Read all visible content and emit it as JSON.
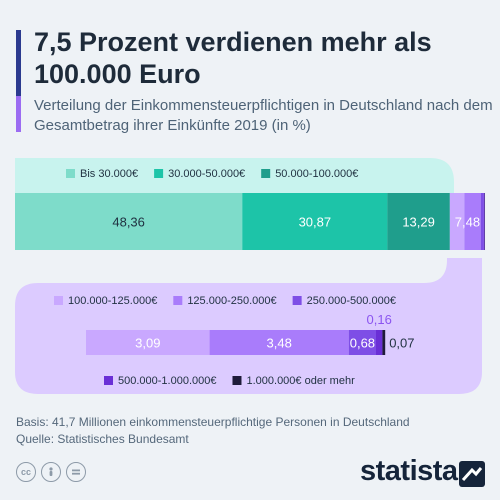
{
  "title": "7,5 Prozent verdienen mehr als 100.000 Euro",
  "subtitle": "Verteilung der Einkommensteuerpflichtigen in Deutschland nach dem Gesamtbetrag ihrer Einkünfte 2019 (in %)",
  "footer": {
    "basis": "Basis: 41,7 Millionen einkommensteuerpflichtige Personen in Deutschland",
    "source": "Quelle: Statistisches Bundesamt"
  },
  "brand": "statista",
  "license_icons": [
    "cc-icon",
    "person-icon",
    "equals-icon"
  ],
  "chart_data": {
    "type": "bar",
    "stacked": true,
    "orientation": "horizontal",
    "unit": "%",
    "series": [
      {
        "name": "Bis 30.000€",
        "value": 48.36,
        "label": "48,36",
        "color": "#7edcca"
      },
      {
        "name": "30.000-50.000€",
        "value": 30.87,
        "label": "30,87",
        "color": "#1dc4a8"
      },
      {
        "name": "50.000-100.000€",
        "value": 13.29,
        "label": "13,29",
        "color": "#1f9e8c"
      },
      {
        "name": "100.000-125.000€",
        "value": 3.09,
        "label": "3,09",
        "color": "#c9a8ff"
      },
      {
        "name": "125.000-250.000€",
        "value": 3.48,
        "label": "3,48",
        "color": "#a97cfb"
      },
      {
        "name": "250.000-500.000€",
        "value": 0.68,
        "label": "0,68",
        "color": "#7e4ee6"
      },
      {
        "name": "500.000-1.000.000€",
        "value": 0.16,
        "label": "0,16",
        "color": "#6a2fd6"
      },
      {
        "name": "1.000.000€ oder mehr",
        "value": 0.07,
        "label": "0,07",
        "color": "#1f1b3a"
      }
    ],
    "group_total_label": "7,48",
    "colors": {
      "upper_band": "#c8f3ee",
      "lower_band": "#dccbff",
      "text_dark": "#1f3040",
      "text_light": "#ffffff",
      "callout": "#8b55f0"
    }
  }
}
